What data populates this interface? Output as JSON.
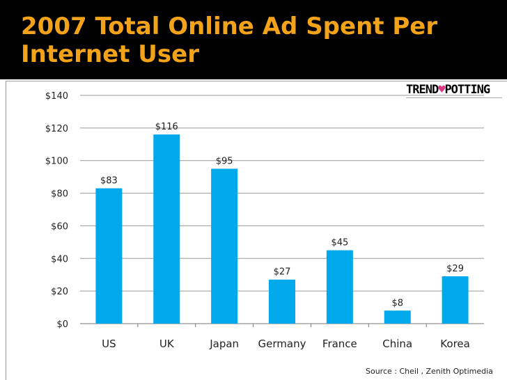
{
  "title": "2007 Total Online Ad Spent Per Internet User",
  "logo": {
    "left": "TREND",
    "right": "POTTING",
    "heart": "♥"
  },
  "source": "Source : Cheil , Zenith Optimedia",
  "colors": {
    "bar": "#00a8ec",
    "title": "#f2a31a",
    "grid": "#9a9a9a"
  },
  "chart_data": {
    "type": "bar",
    "title": "2007 Total Online Ad Spent Per Internet User",
    "xlabel": "",
    "ylabel": "",
    "categories": [
      "US",
      "UK",
      "Japan",
      "Germany",
      "France",
      "China",
      "Korea"
    ],
    "values": [
      83,
      116,
      95,
      27,
      45,
      8,
      29
    ],
    "data_labels": [
      "$83",
      "$116",
      "$95",
      "$27",
      "$45",
      "$8",
      "$29"
    ],
    "yticks": [
      0,
      20,
      40,
      60,
      80,
      100,
      120,
      140
    ],
    "ytick_labels": [
      "$0",
      "$20",
      "$40",
      "$60",
      "$80",
      "$100",
      "$120",
      "$140"
    ],
    "ylim": [
      0,
      140
    ],
    "grid": true
  }
}
